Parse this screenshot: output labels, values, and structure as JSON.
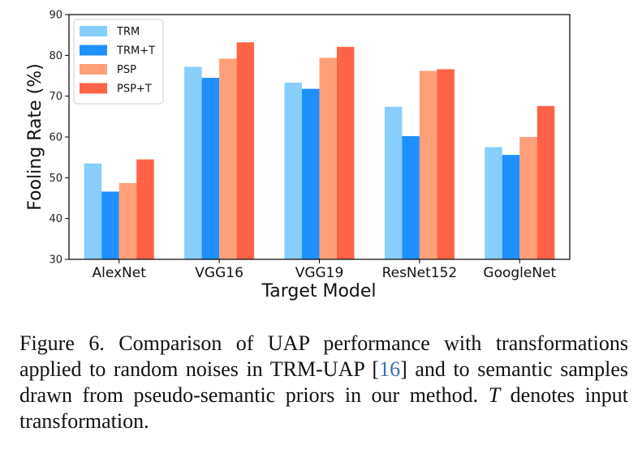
{
  "chart_data": {
    "type": "bar",
    "categories": [
      "AlexNet",
      "VGG16",
      "VGG19",
      "ResNet152",
      "GoogleNet"
    ],
    "series": [
      {
        "name": "TRM",
        "color": "#87cefa",
        "values": [
          53.5,
          77.2,
          73.3,
          67.4,
          57.5
        ]
      },
      {
        "name": "TRM+T",
        "color": "#1e90ff",
        "values": [
          46.6,
          74.5,
          71.8,
          60.2,
          55.6
        ]
      },
      {
        "name": "PSP",
        "color": "#ffa07a",
        "values": [
          48.7,
          79.2,
          79.4,
          76.2,
          60.0
        ]
      },
      {
        "name": "PSP+T",
        "color": "#ff6347",
        "values": [
          54.5,
          83.2,
          82.1,
          76.6,
          67.6
        ]
      }
    ],
    "title": "",
    "xlabel": "Target Model",
    "ylabel": "Fooling Rate (%)",
    "ylim": [
      30,
      90
    ],
    "yticks": [
      30,
      40,
      50,
      60,
      70,
      80,
      90
    ],
    "legend_position": "top-left"
  },
  "caption": {
    "label": "Figure 6.",
    "text_before_ref": "Comparison of UAP performance with transformations applied to random noises in TRM-UAP [",
    "ref": "16",
    "text_after_ref": "] and to semantic samples drawn from pseudo-semantic priors in our method.",
    "math_symbol": "T",
    "text_end": "denotes input transformation."
  }
}
